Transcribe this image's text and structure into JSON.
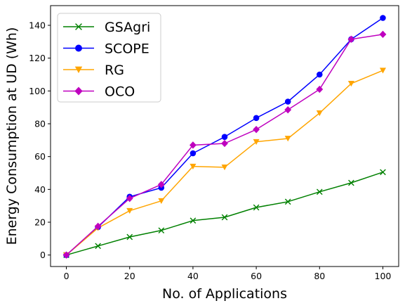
{
  "chart_data": {
    "type": "line",
    "title": "",
    "xlabel": "No. of Applications",
    "ylabel": "Energy Consumption at UD (Wh)",
    "x": [
      0,
      10,
      20,
      30,
      40,
      50,
      60,
      70,
      80,
      90,
      100
    ],
    "xlim": [
      -5,
      105
    ],
    "ylim": [
      -7,
      152
    ],
    "xticks": [
      0,
      20,
      40,
      60,
      80,
      100
    ],
    "yticks": [
      0,
      20,
      40,
      60,
      80,
      100,
      120,
      140
    ],
    "grid": false,
    "legend_position": "top-left",
    "series": [
      {
        "name": "GSAgri",
        "color": "#008000",
        "marker": "x",
        "values": [
          0,
          5.5,
          11,
          15,
          21,
          23,
          29,
          32.5,
          38.5,
          44,
          50.5
        ]
      },
      {
        "name": "SCOPE",
        "color": "#0000ff",
        "marker": "circle",
        "values": [
          0,
          17,
          35.5,
          41,
          62,
          72,
          83.5,
          93.5,
          110,
          131.5,
          144.5
        ]
      },
      {
        "name": "RG",
        "color": "#ffa500",
        "marker": "triangle-down",
        "values": [
          0,
          16.5,
          27,
          33,
          54,
          53.5,
          69,
          71,
          86.5,
          104.5,
          112.5
        ]
      },
      {
        "name": "OCO",
        "color": "#bf00bf",
        "marker": "diamond",
        "values": [
          0,
          17.5,
          34.5,
          43,
          67,
          68,
          76.5,
          88.5,
          101,
          131.5,
          134.5
        ]
      }
    ]
  }
}
